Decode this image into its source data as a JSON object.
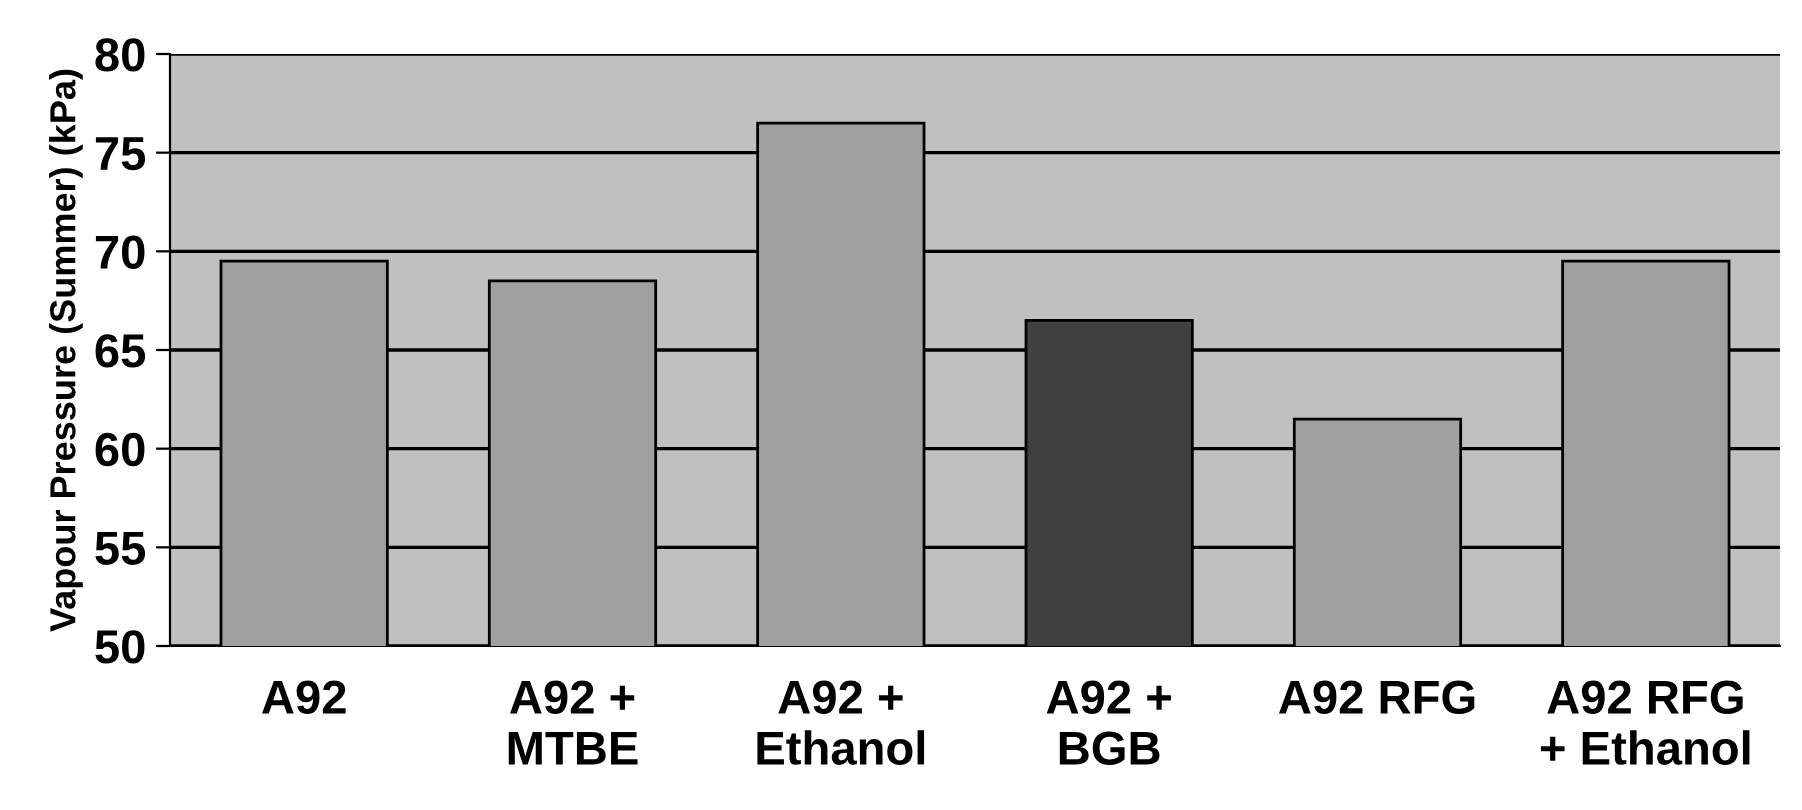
{
  "chart_data": {
    "type": "bar",
    "ylabel": "Vapour Pressure (Summer) (kPa)",
    "categories": [
      "A92",
      "A92 +\nMTBE",
      "A92 +\nEthanol",
      "A92 +\nBGB",
      "A92 RFG",
      "A92 RFG\n+ Ethanol"
    ],
    "values": [
      69.5,
      68.5,
      76.5,
      66.5,
      61.5,
      69.5
    ],
    "colors": [
      "#a0a0a0",
      "#a0a0a0",
      "#a0a0a0",
      "#404040",
      "#a0a0a0",
      "#a0a0a0"
    ],
    "ylim": [
      50,
      80
    ],
    "yticks": [
      50,
      55,
      60,
      65,
      70,
      75,
      80
    ],
    "grid": "y"
  }
}
